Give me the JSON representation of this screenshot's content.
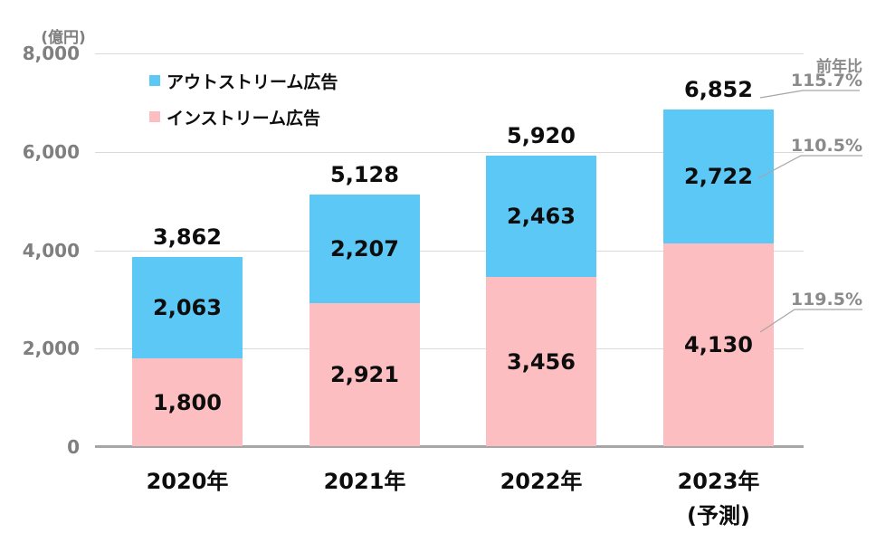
{
  "chart_data": {
    "type": "bar",
    "stacked": true,
    "unit_label": "(億円)",
    "categories": [
      {
        "label": "2020年",
        "sublabel": ""
      },
      {
        "label": "2021年",
        "sublabel": ""
      },
      {
        "label": "2022年",
        "sublabel": ""
      },
      {
        "label": "2023年",
        "sublabel": "(予測)"
      }
    ],
    "series": [
      {
        "name": "インストリーム広告",
        "color": "#fcbec1",
        "values": [
          1800,
          2921,
          3456,
          4130
        ],
        "labels": [
          "1,800",
          "2,921",
          "3,456",
          "4,130"
        ]
      },
      {
        "name": "アウトストリーム広告",
        "color": "#5cc8f6",
        "values": [
          2063,
          2207,
          2463,
          2722
        ],
        "labels": [
          "2,063",
          "2,207",
          "2,463",
          "2,722"
        ]
      }
    ],
    "totals": [
      "3,862",
      "5,128",
      "5,920",
      "6,852"
    ],
    "total_values": [
      3862,
      5128,
      5920,
      6852
    ],
    "ylim": [
      0,
      8000
    ],
    "yticks": [
      0,
      2000,
      4000,
      6000,
      8000
    ],
    "ytick_labels": [
      "0",
      "2,000",
      "4,000",
      "6,000",
      "8,000"
    ],
    "grid": "horizontal",
    "legend_position": "top-left-inside",
    "annotations": {
      "header": "前年比",
      "items": [
        {
          "label": "115.7%",
          "refers_to": "2023 total"
        },
        {
          "label": "110.5%",
          "refers_to": "2023 アウトストリーム広告"
        },
        {
          "label": "119.5%",
          "refers_to": "2023 インストリーム広告"
        }
      ]
    }
  },
  "legend": {
    "items": [
      {
        "label": "アウトストリーム広告",
        "color": "#5cc8f6"
      },
      {
        "label": "インストリーム広告",
        "color": "#fcbec1"
      }
    ]
  },
  "colors": {
    "outstream_blue": "#5cc8f6",
    "instream_pink": "#fcbec1",
    "gridline": "#d9d9d9",
    "axis": "#a6a6a6",
    "gray_text": "#8a8a8a",
    "black_text": "#0d0d0d"
  }
}
